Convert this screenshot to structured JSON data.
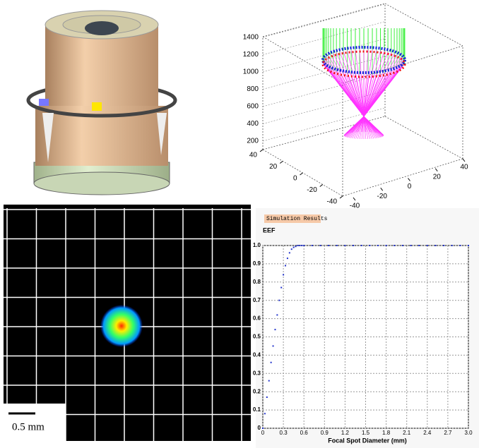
{
  "chart_data": [
    {
      "type": "rays3d",
      "xlim": [
        -40,
        40
      ],
      "xticks": [
        -40,
        -20,
        0,
        20,
        40
      ],
      "ylim": [
        -40,
        40
      ],
      "yticks": [
        -40,
        -20,
        0,
        20,
        40
      ],
      "zlim": [
        200,
        1400
      ],
      "zticks": [
        200,
        400,
        600,
        800,
        1000,
        1200,
        1400
      ]
    },
    {
      "type": "spot",
      "scale_label": "0.5 mm"
    },
    {
      "type": "scatter",
      "title": "Simulation Results",
      "ylabel": "EEF",
      "xlabel": "Focal Spot Diameter (mm)",
      "color": "#2233cc",
      "grid": true,
      "x": [
        0,
        0.03,
        0.06,
        0.09,
        0.12,
        0.15,
        0.18,
        0.21,
        0.24,
        0.27,
        0.3,
        0.33,
        0.36,
        0.39,
        0.42,
        0.45,
        0.48,
        0.51,
        0.54,
        0.57,
        0.6,
        0.72,
        0.84,
        0.96,
        1.08,
        1.2,
        1.32,
        1.44,
        1.56,
        1.68,
        1.8,
        1.92,
        2.04,
        2.16,
        2.28,
        2.4,
        2.52,
        2.64,
        2.76,
        2.88,
        3.0
      ],
      "values": [
        0,
        0.08,
        0.17,
        0.26,
        0.36,
        0.45,
        0.54,
        0.62,
        0.7,
        0.77,
        0.84,
        0.89,
        0.93,
        0.96,
        0.98,
        0.99,
        0.995,
        1,
        1,
        1,
        1,
        1,
        1,
        1,
        1,
        1,
        1,
        1,
        1,
        1,
        1,
        1,
        1,
        1,
        1,
        1,
        1,
        1,
        1,
        1,
        1
      ],
      "xlim": [
        0,
        3.0
      ],
      "xticks": [
        0,
        0.3,
        0.6,
        0.9,
        1.2,
        1.5,
        1.8,
        2.1,
        2.4,
        2.7,
        {
          "value": 3.0,
          "label": "3.0"
        }
      ],
      "ylim": [
        0,
        1.0
      ],
      "yticks": [
        0,
        0.1,
        0.2,
        0.3,
        0.4,
        0.5,
        0.6,
        0.7,
        0.8,
        0.9,
        {
          "value": 1.0,
          "label": "1.0"
        }
      ]
    }
  ]
}
